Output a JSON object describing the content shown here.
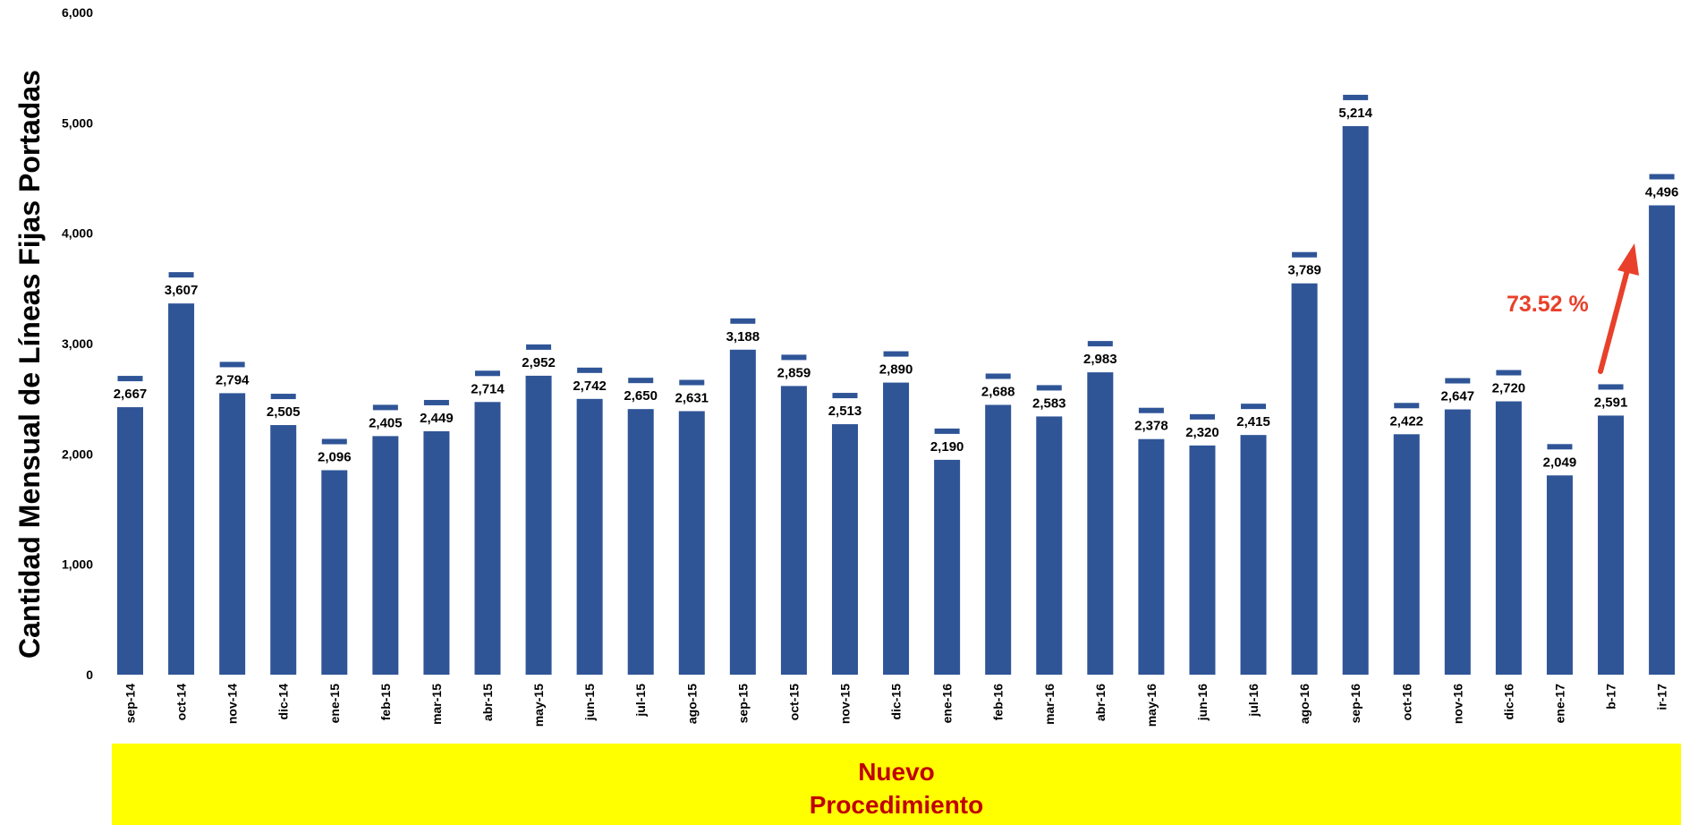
{
  "chart_data": {
    "type": "bar",
    "title": "",
    "xlabel": "",
    "ylabel": "Cantidad Mensual de Líneas Fijas  Portadas",
    "ylim": [
      0,
      6000
    ],
    "y_ticks": [
      "0",
      "1,000",
      "2,000",
      "3,000",
      "4,000",
      "5,000",
      "6,000"
    ],
    "grid": false,
    "categories": [
      "sep-14",
      "oct-14",
      "nov-14",
      "dic-14",
      "ene-15",
      "feb-15",
      "mar-15",
      "abr-15",
      "may-15",
      "jun-15",
      "jul-15",
      "ago-15",
      "sep-15",
      "oct-15",
      "nov-15",
      "dic-15",
      "ene-16",
      "feb-16",
      "mar-16",
      "abr-16",
      "may-16",
      "jun-16",
      "jul-16",
      "ago-16",
      "sep-16",
      "oct-16",
      "nov-16",
      "dic-16",
      "ene-17",
      "b-17",
      "ir-17"
    ],
    "values": [
      2667,
      3607,
      2794,
      2505,
      2096,
      2405,
      2449,
      2714,
      2952,
      2742,
      2650,
      2631,
      3188,
      2859,
      2513,
      2890,
      2190,
      2688,
      2583,
      2983,
      2378,
      2320,
      2415,
      3789,
      5214,
      2422,
      2647,
      2720,
      2049,
      2591,
      4496
    ],
    "data_labels": [
      "2,667",
      "3,607",
      "2,794",
      "2,505",
      "2,096",
      "2,405",
      "2,449",
      "2,714",
      "2,952",
      "2,742",
      "2,650",
      "2,631",
      "3,188",
      "2,859",
      "2,513",
      "2,890",
      "2,190",
      "2,688",
      "2,583",
      "2,983",
      "2,378",
      "2,320",
      "2,415",
      "3,789",
      "5,214",
      "2,422",
      "2,647",
      "2,720",
      "2,049",
      "2,591",
      "4,496"
    ],
    "bar_color": "#2F5597",
    "annotation": {
      "text": "73.52 %",
      "color": "#E8402A"
    },
    "band": {
      "line1": "Nuevo",
      "line2": "Procedimiento",
      "background": "#FFFF00",
      "text_color": "#C00000"
    }
  }
}
